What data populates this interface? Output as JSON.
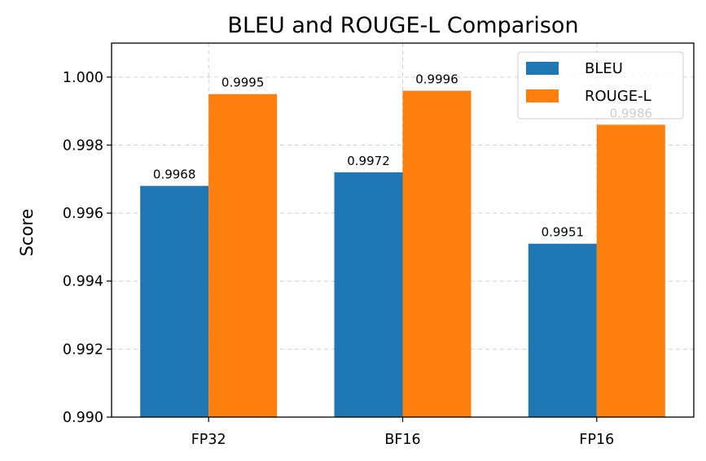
{
  "chart_data": {
    "type": "bar",
    "title": "BLEU and ROUGE-L Comparison",
    "xlabel": "",
    "ylabel": "Score",
    "categories": [
      "FP32",
      "BF16",
      "FP16"
    ],
    "series": [
      {
        "name": "BLEU",
        "color": "#1f77b4",
        "values": [
          0.9968,
          0.9972,
          0.9951
        ],
        "labels": [
          "0.9968",
          "0.9972",
          "0.9951"
        ]
      },
      {
        "name": "ROUGE-L",
        "color": "#ff7f0e",
        "values": [
          0.9995,
          0.9996,
          0.9986
        ],
        "labels": [
          "0.9995",
          "0.9996",
          "0.9986"
        ]
      }
    ],
    "ylim": [
      0.99,
      1.001
    ],
    "yticks": [
      0.99,
      0.992,
      0.994,
      0.996,
      0.998,
      1.0
    ],
    "ytick_labels": [
      "0.990",
      "0.992",
      "0.994",
      "0.996",
      "0.998",
      "1.000"
    ],
    "grid": true,
    "legend_position": "top-right"
  }
}
